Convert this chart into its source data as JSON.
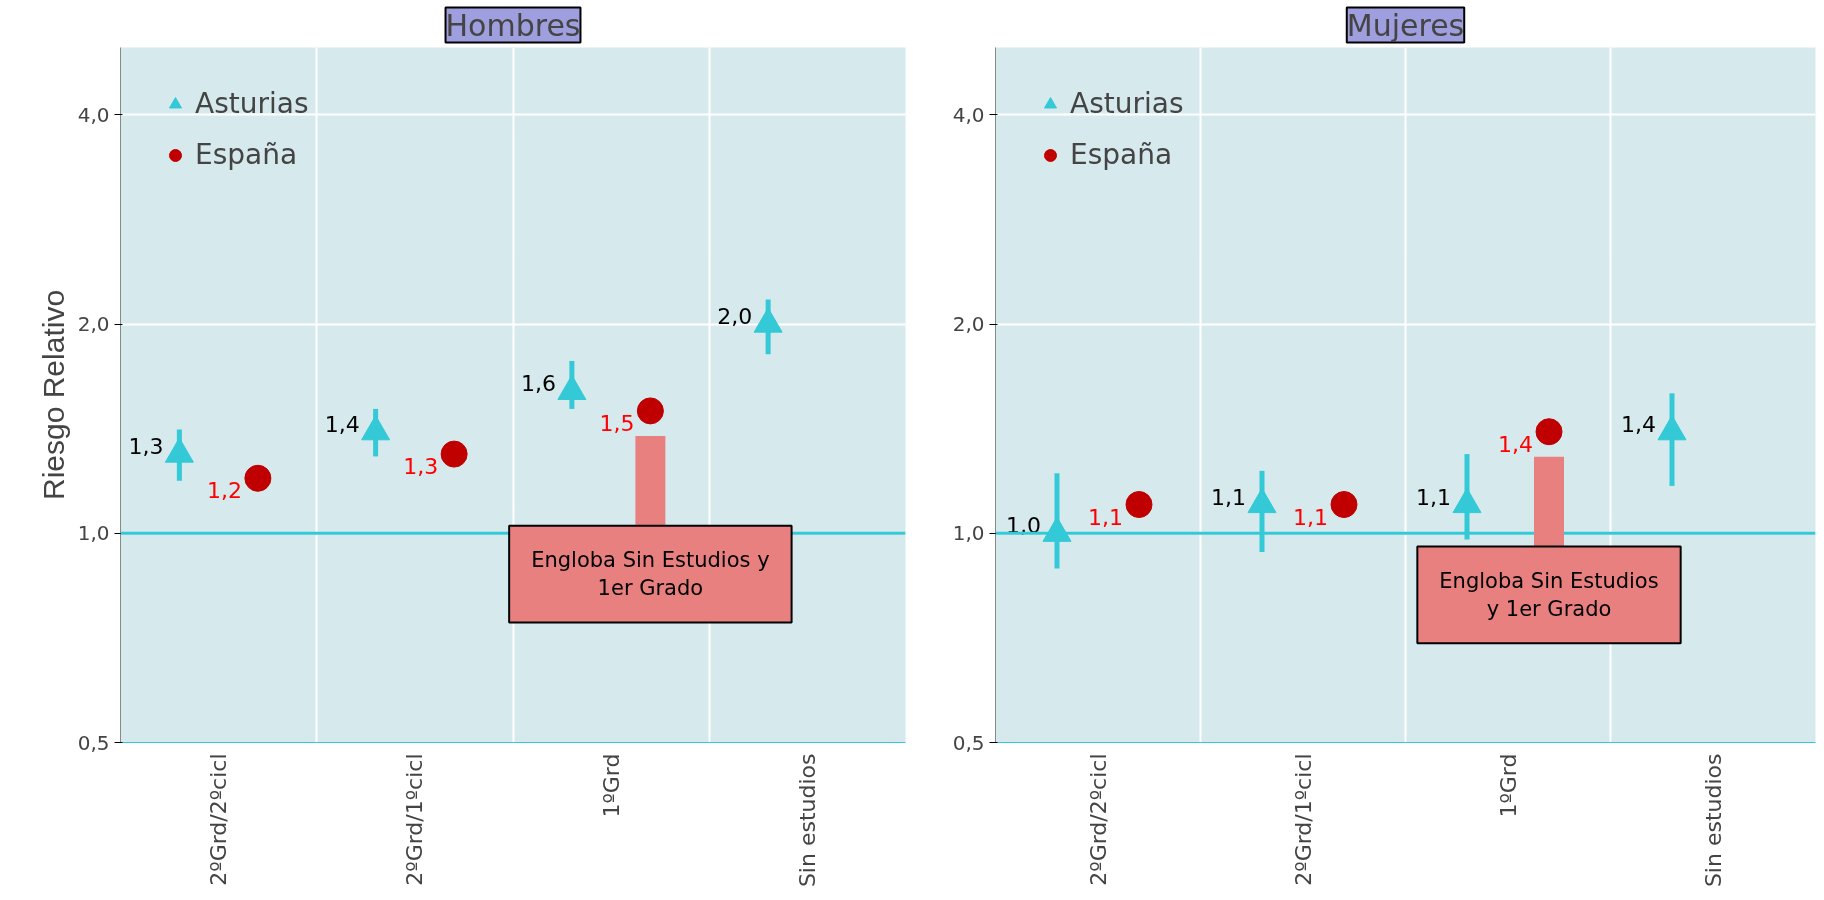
{
  "chart_data": [
    {
      "type": "scatter",
      "title": "Hombres",
      "ylabel": "Riesgo Relativo",
      "categories": [
        "2ºGrd/2ºcicl",
        "2ºGrd/1ºcicl",
        "1ºGrd",
        "Sin estudios"
      ],
      "log": "y",
      "ylim": [
        0.5,
        5
      ],
      "yticks": [
        {
          "value": 0.5,
          "label": "0,5"
        },
        {
          "value": 1,
          "label": "1,0"
        },
        {
          "value": 2,
          "label": "2,0"
        },
        {
          "value": 4,
          "label": "4,0"
        }
      ],
      "grid": true,
      "legend": "top left",
      "series": [
        {
          "name": "Asturias",
          "color": "#33c9d6",
          "marker": "triangle",
          "values": [
            1.3,
            1.4,
            1.6,
            2.0
          ],
          "errors": [
            [
              1.19,
              1.41
            ],
            [
              1.29,
              1.51
            ],
            [
              1.51,
              1.77
            ],
            [
              1.81,
              2.17
            ]
          ],
          "value_labels": [
            "1,3",
            "1,4",
            "1,6",
            "2,0"
          ]
        },
        {
          "name": "España",
          "color": "#c00000",
          "marker": "circle",
          "values": [
            1.2,
            1.3,
            1.5,
            null
          ],
          "value_labels": [
            "1,2",
            "1,3",
            "1,5",
            null
          ]
        }
      ],
      "ref_lines": [
        {
          "axis": "y",
          "value": 1,
          "color": "#33c9d6"
        }
      ],
      "annotations": [
        "Engloba Sin Estudios y\n1er Grado"
      ]
    },
    {
      "type": "scatter",
      "title": "Mujeres",
      "categories": [
        "2ºGrd/2ºcicl",
        "2ºGrd/1ºcicl",
        "1ºGrd",
        "Sin estudios"
      ],
      "log": "y",
      "ylim": [
        0.5,
        5
      ],
      "yticks": [
        {
          "value": 0.5,
          "label": "0,5"
        },
        {
          "value": 1,
          "label": "1,0"
        },
        {
          "value": 2,
          "label": "2,0"
        },
        {
          "value": 4,
          "label": "4,0"
        }
      ],
      "grid": true,
      "legend": "top left",
      "series": [
        {
          "name": "Asturias",
          "color": "#33c9d6",
          "marker": "triangle",
          "values": [
            1.0,
            1.1,
            1.1,
            1.4
          ],
          "errors": [
            [
              0.89,
              1.22
            ],
            [
              0.94,
              1.23
            ],
            [
              0.98,
              1.3
            ],
            [
              1.17,
              1.59
            ]
          ],
          "value_labels": [
            "1,0",
            "1,1",
            "1,1",
            "1,4"
          ]
        },
        {
          "name": "España",
          "color": "#c00000",
          "marker": "circle",
          "values": [
            1.1,
            1.1,
            1.4,
            null
          ],
          "value_labels": [
            "1,1",
            "1,1",
            "1,4",
            null
          ]
        }
      ],
      "ref_lines": [
        {
          "axis": "y",
          "value": 1,
          "color": "#33c9d6"
        }
      ],
      "annotations": [
        "Engloba Sin Estudios\ny 1er Grado"
      ]
    }
  ]
}
